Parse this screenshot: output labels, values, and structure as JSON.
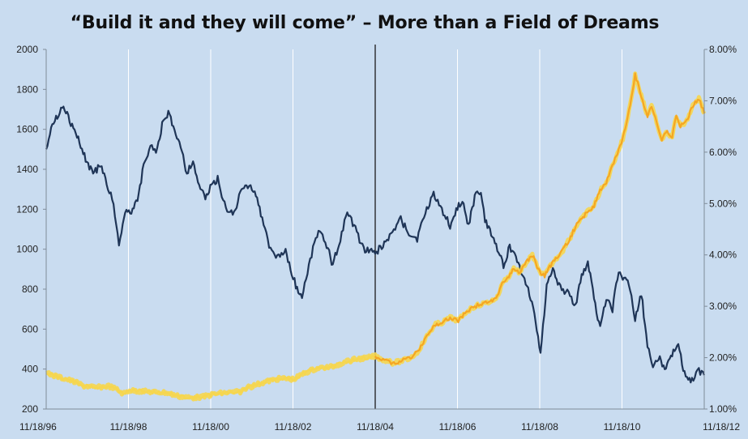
{
  "chart_data": {
    "type": "line",
    "title": "“Build it and they will come” – More than a Field of Dreams",
    "xlabel": "",
    "ylabel": "",
    "x_ticks": [
      "11/18/96",
      "11/18/98",
      "11/18/00",
      "11/18/02",
      "11/18/04",
      "11/18/06",
      "11/18/08",
      "11/18/10",
      "11/18/12"
    ],
    "ylim_left": [
      200,
      2000
    ],
    "y_ticks_left": [
      "200",
      "400",
      "600",
      "800",
      "1000",
      "1200",
      "1400",
      "1600",
      "1800",
      "2000"
    ],
    "ylim_right": [
      1.0,
      8.0
    ],
    "y_ticks_right": [
      "1.00%",
      "2.00%",
      "3.00%",
      "4.00%",
      "5.00%",
      "6.00%",
      "7.00%",
      "8.00%"
    ],
    "grid": "vertical",
    "annotation": {
      "type": "vertical-line",
      "x": 2004.88
    },
    "series": [
      {
        "axis": "left",
        "color": "#1f3557",
        "x": [
          1996.88,
          1997.0,
          1997.15,
          1997.3,
          1997.45,
          1997.6,
          1997.75,
          1997.9,
          1998.05,
          1998.2,
          1998.35,
          1998.45,
          1998.55,
          1998.65,
          1998.8,
          1998.95,
          1999.1,
          1999.25,
          1999.45,
          1999.55,
          1999.7,
          1999.85,
          2000.0,
          2000.15,
          2000.3,
          2000.45,
          2000.6,
          2000.75,
          2000.9,
          2001.05,
          2001.25,
          2001.45,
          2001.6,
          2001.75,
          2001.95,
          2002.1,
          2002.3,
          2002.5,
          2002.7,
          2002.85,
          2002.95,
          2003.1,
          2003.3,
          2003.5,
          2003.7,
          2003.85,
          2004.0,
          2004.2,
          2004.4,
          2004.6,
          2004.88,
          2005.1,
          2005.3,
          2005.5,
          2005.7,
          2005.9,
          2006.1,
          2006.3,
          2006.5,
          2006.7,
          2006.85,
          2007.0,
          2007.15,
          2007.3,
          2007.45,
          2007.55,
          2007.7,
          2007.85,
          2008.0,
          2008.15,
          2008.3,
          2008.45,
          2008.6,
          2008.75,
          2008.9,
          2009.05,
          2009.2,
          2009.35,
          2009.55,
          2009.75,
          2009.9,
          2010.05,
          2010.2,
          2010.35,
          2010.5,
          2010.65,
          2010.8,
          2010.9,
          2011.05,
          2011.2,
          2011.35,
          2011.5,
          2011.6,
          2011.7,
          2011.8,
          2011.95,
          2012.1,
          2012.25,
          2012.4,
          2012.55,
          2012.75,
          2012.88
        ],
        "y": [
          1500,
          1620,
          1660,
          1730,
          1640,
          1580,
          1500,
          1420,
          1380,
          1430,
          1320,
          1280,
          1180,
          1020,
          1200,
          1180,
          1240,
          1420,
          1520,
          1480,
          1620,
          1680,
          1600,
          1520,
          1380,
          1440,
          1320,
          1250,
          1320,
          1350,
          1200,
          1180,
          1280,
          1320,
          1300,
          1180,
          1010,
          960,
          990,
          880,
          820,
          760,
          950,
          1100,
          1020,
          920,
          1030,
          1180,
          1100,
          1000,
          980,
          1030,
          1080,
          1150,
          1080,
          1050,
          1180,
          1280,
          1200,
          1120,
          1190,
          1250,
          1120,
          1260,
          1300,
          1150,
          1080,
          1000,
          920,
          1010,
          960,
          880,
          800,
          680,
          480,
          820,
          900,
          820,
          780,
          720,
          860,
          930,
          760,
          600,
          760,
          700,
          900,
          860,
          820,
          650,
          780,
          520,
          420,
          440,
          450,
          400,
          480,
          520,
          380,
          340,
          390,
          370
        ],
        "highlight": ""
      },
      {
        "axis": "right",
        "color": "#f5a623",
        "highlight": "#f6d64e",
        "x": [
          1996.88,
          1997.2,
          1997.5,
          1997.8,
          1998.1,
          1998.4,
          1998.6,
          1998.75,
          1998.9,
          1999.2,
          1999.5,
          1999.8,
          2000.1,
          2000.4,
          2000.7,
          2001.0,
          2001.3,
          2001.6,
          2001.8,
          2002.0,
          2002.3,
          2002.6,
          2002.9,
          2003.2,
          2003.5,
          2003.8,
          2004.1,
          2004.4,
          2004.7,
          2004.88,
          2005.1,
          2005.3,
          2005.5,
          2005.7,
          2005.9,
          2006.05,
          2006.2,
          2006.35,
          2006.5,
          2006.7,
          2006.9,
          2007.1,
          2007.3,
          2007.5,
          2007.7,
          2007.85,
          2008.0,
          2008.1,
          2008.25,
          2008.4,
          2008.55,
          2008.7,
          2008.85,
          2009.0,
          2009.15,
          2009.3,
          2009.45,
          2009.6,
          2009.75,
          2009.9,
          2010.05,
          2010.2,
          2010.35,
          2010.5,
          2010.65,
          2010.8,
          2010.9,
          2011.05,
          2011.2,
          2011.35,
          2011.5,
          2011.6,
          2011.75,
          2011.85,
          2011.95,
          2012.1,
          2012.2,
          2012.3,
          2012.45,
          2012.6,
          2012.75,
          2012.88
        ],
        "y": [
          1.7,
          1.62,
          1.55,
          1.45,
          1.42,
          1.45,
          1.38,
          1.3,
          1.36,
          1.35,
          1.33,
          1.32,
          1.25,
          1.22,
          1.24,
          1.3,
          1.32,
          1.34,
          1.42,
          1.48,
          1.55,
          1.6,
          1.58,
          1.72,
          1.8,
          1.82,
          1.9,
          1.97,
          2.0,
          2.03,
          1.95,
          1.9,
          1.93,
          1.98,
          2.1,
          2.3,
          2.5,
          2.65,
          2.68,
          2.78,
          2.72,
          2.9,
          3.0,
          3.05,
          3.1,
          3.18,
          3.5,
          3.55,
          3.75,
          3.65,
          3.85,
          4.0,
          3.7,
          3.6,
          3.8,
          3.95,
          4.1,
          4.3,
          4.55,
          4.7,
          4.85,
          4.95,
          5.25,
          5.4,
          5.75,
          6.05,
          6.25,
          6.8,
          7.5,
          7.1,
          6.7,
          6.9,
          6.5,
          6.25,
          6.4,
          6.3,
          6.7,
          6.5,
          6.6,
          6.9,
          7.05,
          6.75
        ],
        "name": ""
      }
    ]
  }
}
